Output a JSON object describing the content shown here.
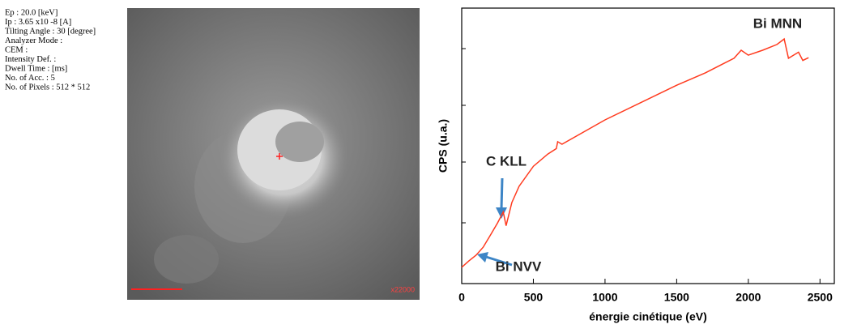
{
  "sem_info": {
    "lines": [
      "Ep : 20.0 [keV]",
      "Ip :  3.65 x10 -8 [A]",
      "Tilting Angle : 30 [degree]",
      "Analyzer Mode :",
      "CEM :",
      "Intensity Def. :",
      "Dwell Time :  [ms]",
      "No. of Acc. : 5",
      "No. of Pixels : 512 * 512"
    ],
    "magnification": "x22000"
  },
  "chart_data": {
    "type": "line",
    "x_label": "énergie cinétique (eV)",
    "y_label": "CPS (u.a.)",
    "annotations": [
      "C KLL",
      "Bi MNN",
      "Bi NVV"
    ],
    "x": [
      0,
      50,
      100,
      150,
      200,
      250,
      290,
      310,
      350,
      400,
      500,
      600,
      660,
      670,
      700,
      1000,
      1500,
      1700,
      1900,
      1950,
      2000,
      2100,
      2200,
      2250,
      2280,
      2350,
      2380,
      2420
    ],
    "values": [
      5.9,
      8.2,
      10.3,
      13.2,
      17.6,
      22,
      26,
      21,
      29.4,
      35.3,
      42.6,
      47,
      49,
      51.5,
      50.6,
      59.4,
      72,
      76.5,
      81.8,
      84.7,
      82.9,
      84.7,
      86.8,
      88.8,
      81.8,
      84,
      81,
      82
    ],
    "color": "#ff3b1f",
    "xlim": [
      0,
      2600
    ],
    "ylim": [
      0,
      100
    ],
    "xticks": [
      0,
      500,
      1000,
      1500,
      2000,
      2500
    ]
  }
}
